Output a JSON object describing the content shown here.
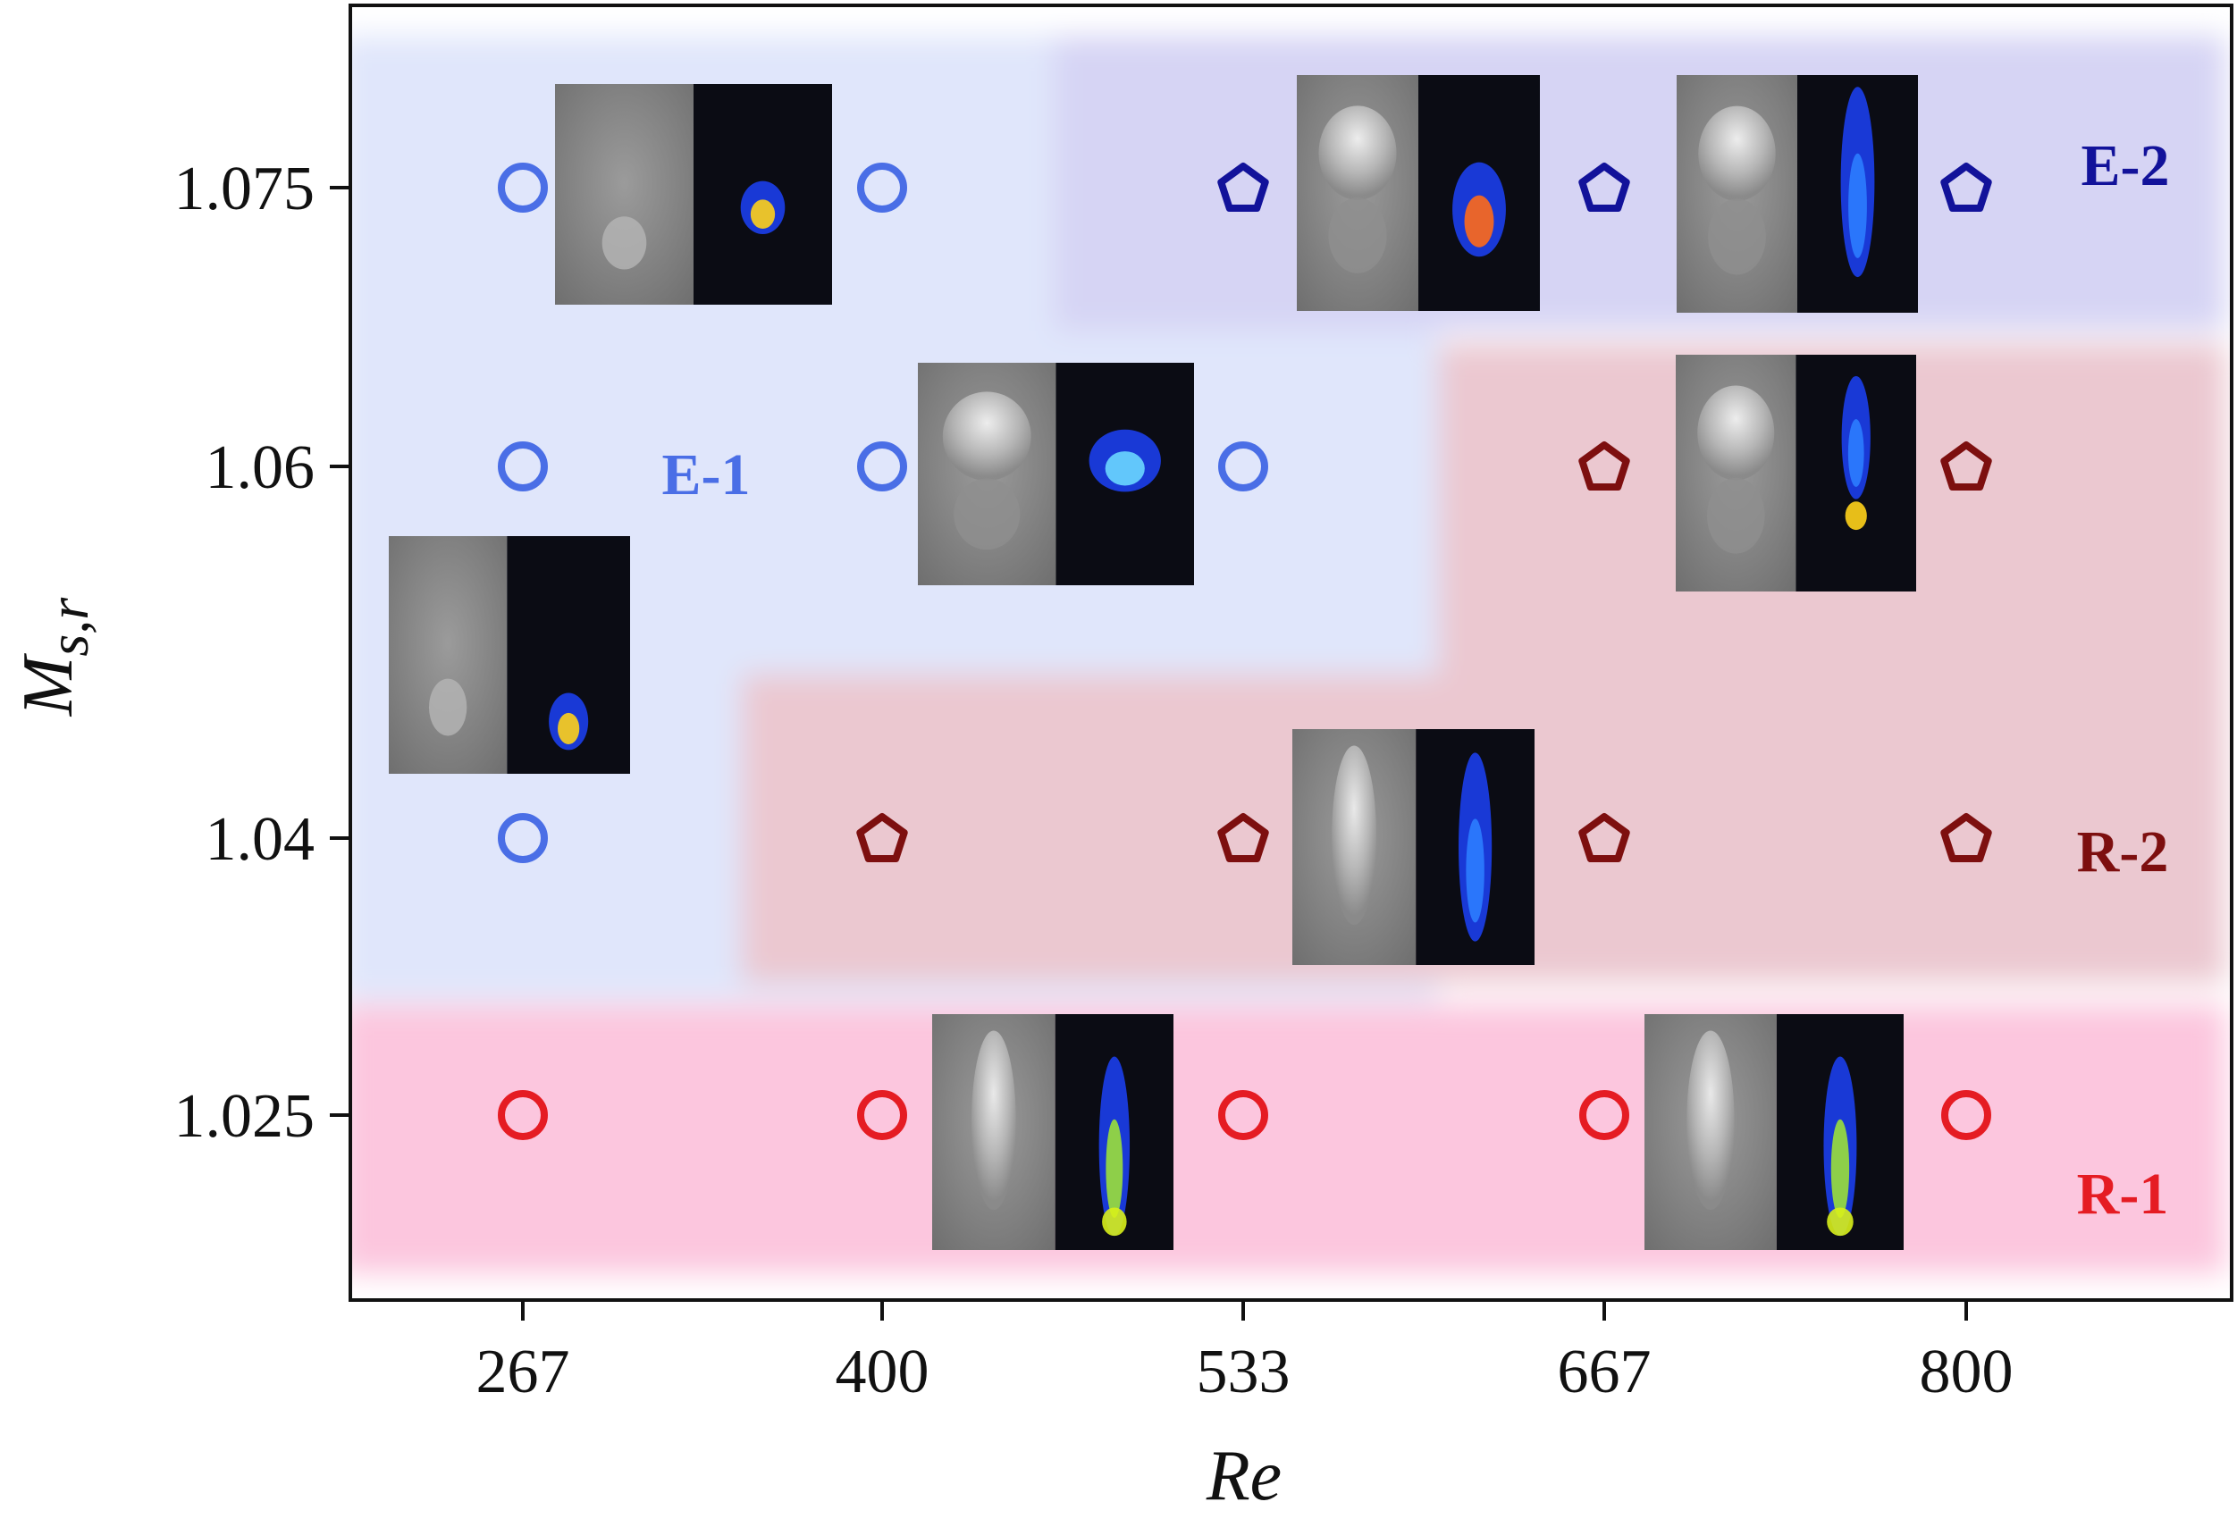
{
  "chart_data": {
    "type": "scatter",
    "title": "",
    "xlabel": "Re",
    "ylabel_main": "M",
    "ylabel_sub": "s,r",
    "x_ticks": [
      267,
      400,
      533,
      667,
      800
    ],
    "y_ticks": [
      1.025,
      1.04,
      1.06,
      1.075
    ],
    "xlim": [
      200,
      890
    ],
    "ylim": [
      1.016,
      1.085
    ],
    "regions": [
      {
        "name": "E-1",
        "color": "#4a6ee6",
        "fill": "#e0e6fb"
      },
      {
        "name": "E-2",
        "color": "#12129a",
        "fill": "#d6d4f4"
      },
      {
        "name": "R-2",
        "color": "#7d0f0f",
        "fill": "#ebc8d0"
      },
      {
        "name": "R-1",
        "color": "#e51c23",
        "fill": "#fcc6de"
      }
    ],
    "series": [
      {
        "name": "E-1",
        "marker": "circle",
        "color": "#4a6ee6",
        "points": [
          [
            267,
            1.075
          ],
          [
            400,
            1.075
          ],
          [
            267,
            1.06
          ],
          [
            400,
            1.06
          ],
          [
            533,
            1.06
          ],
          [
            267,
            1.04
          ]
        ]
      },
      {
        "name": "E-2",
        "marker": "pentagon",
        "color": "#12129a",
        "points": [
          [
            533,
            1.075
          ],
          [
            667,
            1.075
          ],
          [
            800,
            1.075
          ]
        ]
      },
      {
        "name": "R-2",
        "marker": "pentagon",
        "color": "#7d0f0f",
        "points": [
          [
            667,
            1.06
          ],
          [
            800,
            1.06
          ],
          [
            400,
            1.04
          ],
          [
            533,
            1.04
          ],
          [
            667,
            1.04
          ],
          [
            800,
            1.04
          ]
        ]
      },
      {
        "name": "R-1",
        "marker": "circle",
        "color": "#e51c23",
        "points": [
          [
            267,
            1.025
          ],
          [
            400,
            1.025
          ],
          [
            533,
            1.025
          ],
          [
            667,
            1.025
          ],
          [
            800,
            1.025
          ]
        ]
      }
    ],
    "insets": [
      {
        "name": "inset-e1-low-re",
        "shape": "round-cap",
        "core": "#ffd21a"
      },
      {
        "name": "inset-e1-mid",
        "shape": "round-cap",
        "core": "#ffd21a"
      },
      {
        "name": "inset-e1-top",
        "shape": "dome",
        "core": "#6ad7ff"
      },
      {
        "name": "inset-e2-left",
        "shape": "dome-stem",
        "core": "#ff6a1a"
      },
      {
        "name": "inset-e2-right",
        "shape": "column",
        "core": "#2c7dff"
      },
      {
        "name": "inset-r2-top",
        "shape": "column-split",
        "core": "#2c7dff"
      },
      {
        "name": "inset-r2-mid",
        "shape": "diamond",
        "core": "#2c7dff"
      },
      {
        "name": "inset-r1-left",
        "shape": "tail",
        "core": "#9be03a"
      },
      {
        "name": "inset-r1-right",
        "shape": "tail",
        "core": "#9be03a"
      }
    ]
  }
}
